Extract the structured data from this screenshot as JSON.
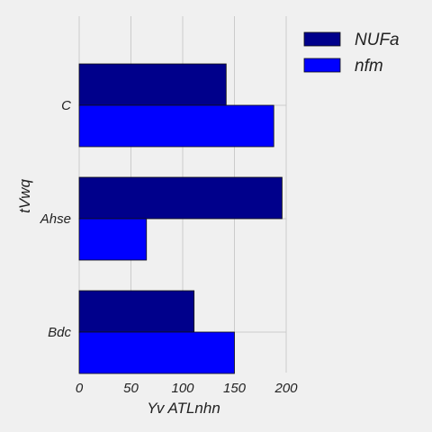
{
  "chart_data": {
    "type": "bar",
    "orientation": "horizontal",
    "categories": [
      "C",
      "Ahse",
      "Bdc"
    ],
    "series": [
      {
        "name": "NUFa",
        "values": [
          142,
          196,
          111
        ],
        "color": "#00008b"
      },
      {
        "name": "nfm",
        "values": [
          188,
          65,
          150
        ],
        "color": "#0000ff"
      }
    ],
    "xlabel": "Yv ATLnhn",
    "ylabel": "tVwq",
    "xlim": [
      0,
      200
    ],
    "xticks": [
      "0",
      "50",
      "100",
      "150",
      "200"
    ],
    "grid": true,
    "legend_position": "top-right"
  }
}
